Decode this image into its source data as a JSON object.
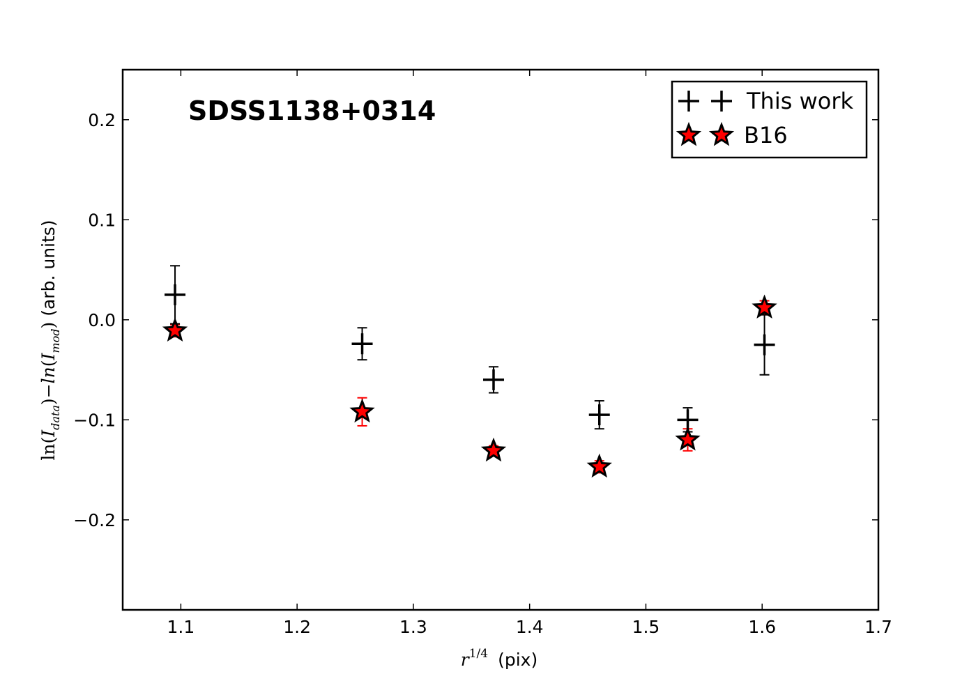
{
  "chart_data": {
    "type": "scatter",
    "annotation": "SDSS1138+0314",
    "xlabel": {
      "math_base": "r",
      "math_sup": "1/4",
      "text": "(pix)"
    },
    "ylabel": {
      "part1_fn": "ln",
      "part1_sub": "data",
      "part2_fn": "ln",
      "part2_sub": "mod",
      "letter": "I",
      "text": "(arb. units)"
    },
    "xlim": [
      1.05,
      1.7
    ],
    "ylim": [
      -0.29,
      0.25
    ],
    "xticks": [
      1.1,
      1.2,
      1.3,
      1.4,
      1.5,
      1.6,
      1.7
    ],
    "xtick_labels": [
      "1.1",
      "1.2",
      "1.3",
      "1.4",
      "1.5",
      "1.6",
      "1.7"
    ],
    "yticks": [
      0.2,
      0.1,
      0.0,
      -0.1,
      -0.2
    ],
    "ytick_labels": [
      "0.2",
      "0.1",
      "0.0",
      "−0.1",
      "−0.2"
    ],
    "grid": false,
    "legend_position": "top-right",
    "series": [
      {
        "name": "This work",
        "marker": "plus",
        "color": "#000000",
        "x": [
          1.095,
          1.256,
          1.369,
          1.46,
          1.536,
          1.602
        ],
        "y": [
          0.025,
          -0.024,
          -0.06,
          -0.095,
          -0.1,
          -0.025
        ],
        "yerr": [
          0.029,
          0.016,
          0.013,
          0.014,
          0.012,
          0.03
        ]
      },
      {
        "name": "B16",
        "marker": "star",
        "color": "#ff0000",
        "edge_color": "#000000",
        "x": [
          1.095,
          1.256,
          1.369,
          1.46,
          1.536,
          1.602
        ],
        "y": [
          -0.011,
          -0.092,
          -0.131,
          -0.147,
          -0.12,
          0.012
        ],
        "yerr": [
          0.006,
          0.014,
          0.005,
          0.006,
          0.011,
          0.007
        ]
      }
    ]
  }
}
